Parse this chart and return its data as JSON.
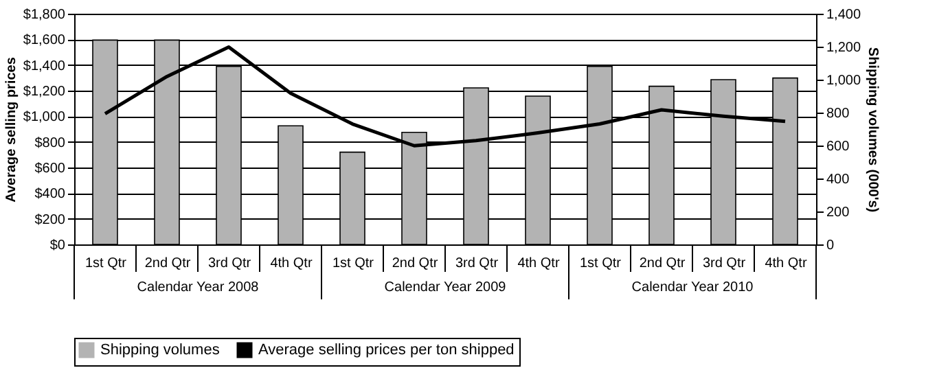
{
  "chart_data": {
    "type": "bar",
    "xlabel": null,
    "ylabel": "Average selling prices",
    "y2label": "Shipping volumes (000's)",
    "categories": [
      "1st Qtr",
      "2nd Qtr",
      "3rd Qtr",
      "4th Qtr",
      "1st Qtr",
      "2nd Qtr",
      "3rd Qtr",
      "4th Qtr",
      "1st Qtr",
      "2nd Qtr",
      "3rd Qtr",
      "4th Qtr"
    ],
    "series": [
      {
        "name": "Shipping volumes",
        "axis": "y2",
        "color": "#b3b3b3",
        "values": [
          1240,
          1240,
          1080,
          720,
          560,
          680,
          950,
          900,
          1080,
          960,
          1000,
          1010
        ]
      },
      {
        "name": "Average selling prices per ton shipped",
        "type": "line",
        "color": "#000000",
        "values": [
          1020,
          1310,
          1540,
          1180,
          940,
          770,
          810,
          870,
          940,
          1050,
          1000,
          960
        ]
      }
    ],
    "ylim": [
      0,
      1800
    ],
    "yticks": [
      {
        "value": 0,
        "label": "$0"
      },
      {
        "value": 200,
        "label": "$200"
      },
      {
        "value": 400,
        "label": "$400"
      },
      {
        "value": 600,
        "label": "$600"
      },
      {
        "value": 800,
        "label": "$800"
      },
      {
        "value": 1000,
        "label": "$1,000"
      },
      {
        "value": 1200,
        "label": "$1,200"
      },
      {
        "value": 1400,
        "label": "$1,400"
      },
      {
        "value": 1600,
        "label": "$1,600"
      },
      {
        "value": 1800,
        "label": "$1,800"
      }
    ],
    "y2lim": [
      0,
      1400
    ],
    "y2ticks": [
      0,
      200,
      400,
      600,
      800,
      {
        "value": 1000,
        "label": "1,000"
      },
      {
        "value": 1200,
        "label": "1,200"
      },
      {
        "value": 1400,
        "label": "1,400"
      }
    ],
    "annotations": [
      "Calendar Year 2008",
      "Calendar Year 2009",
      "Calendar Year 2010"
    ],
    "grid": "y",
    "legend": "bottom",
    "marker": "none",
    "line_style": "solid"
  }
}
